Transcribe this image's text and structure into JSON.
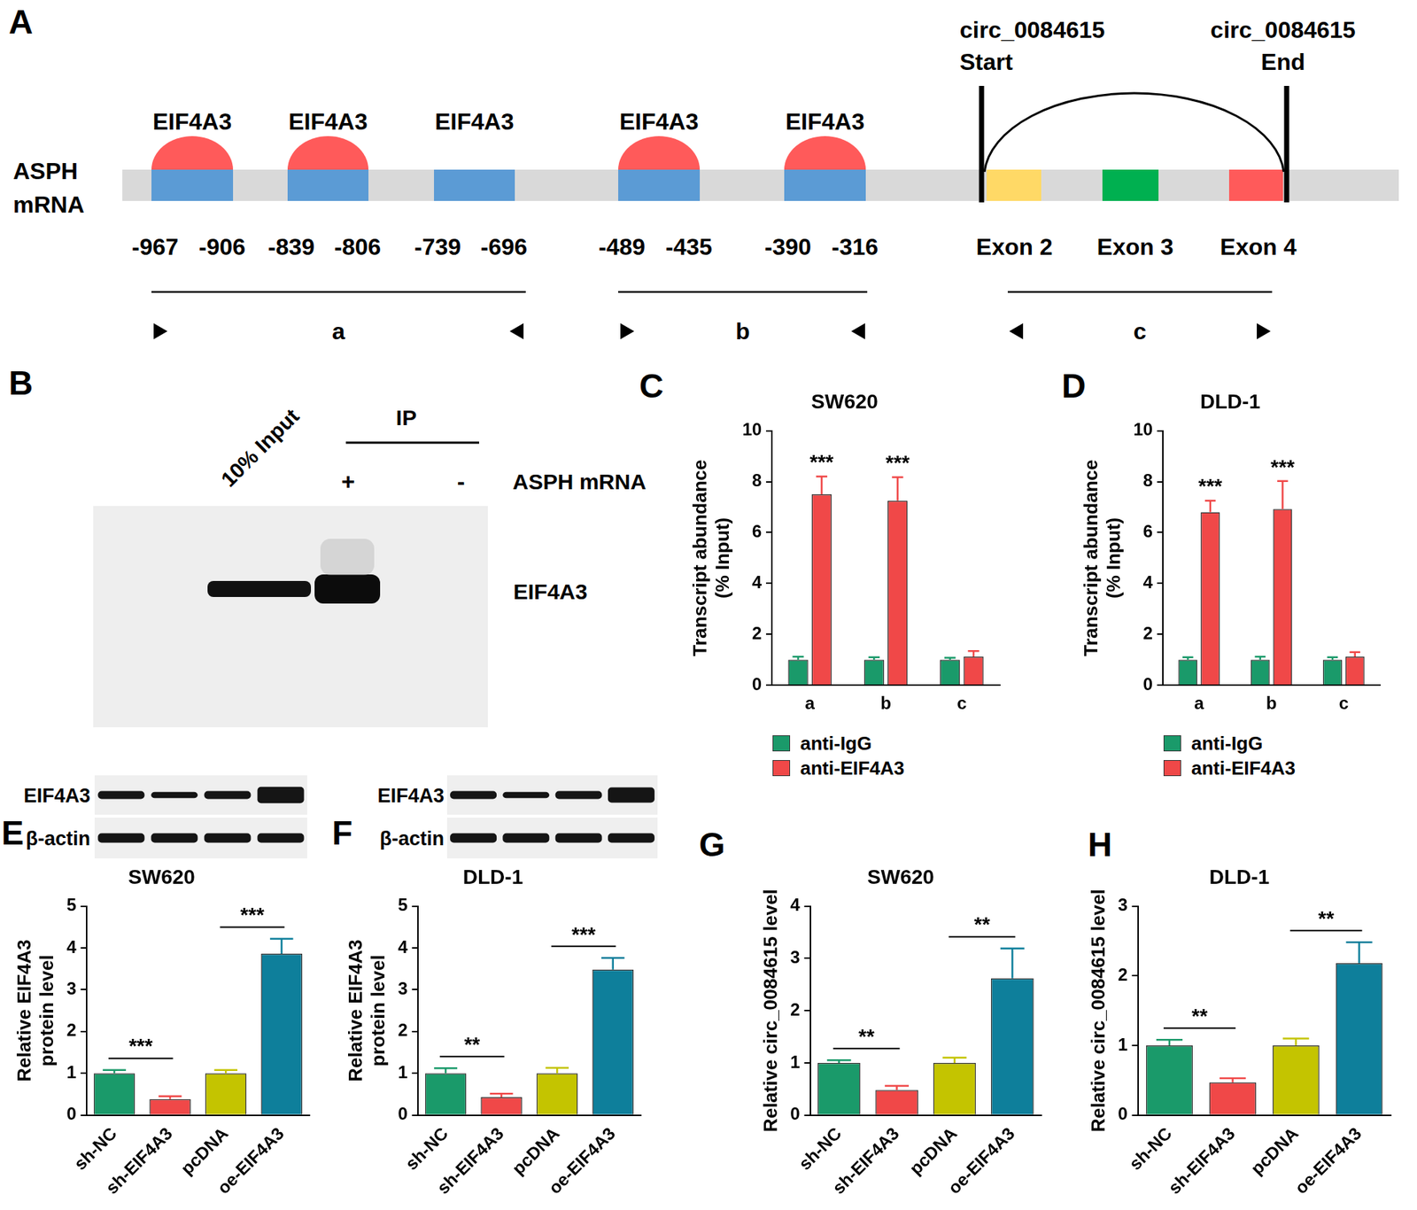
{
  "diagram": {
    "panel": "A",
    "mrna_label": [
      "ASPH",
      "mRNA"
    ],
    "sites": [
      {
        "label": "EIF4A3",
        "start": -967,
        "end": -906,
        "bound": true
      },
      {
        "label": "EIF4A3",
        "start": -839,
        "end": -806,
        "bound": true
      },
      {
        "label": "EIF4A3",
        "start": -739,
        "end": -696,
        "bound": false
      },
      {
        "label": "EIF4A3",
        "start": -489,
        "end": -435,
        "bound": true
      },
      {
        "label": "EIF4A3",
        "start": -390,
        "end": -316,
        "bound": true
      }
    ],
    "circ_start": [
      "circ_0084615",
      "Start"
    ],
    "circ_end": [
      "circ_0084615",
      "End"
    ],
    "exons": [
      {
        "label": "Exon 2",
        "color": "#ffd966"
      },
      {
        "label": "Exon 3",
        "color": "#00b050"
      },
      {
        "label": "Exon 4",
        "color": "#ff5a5a"
      }
    ],
    "regions": [
      "a",
      "b",
      "c"
    ]
  },
  "blot_ip": {
    "panel": "B",
    "input_label": "10% Input",
    "ip_label": "IP",
    "ip_lanes": [
      "+",
      "-"
    ],
    "row_label": "ASPH mRNA",
    "band_label": "EIF4A3"
  },
  "blots": [
    {
      "panel": "E",
      "rows": [
        "EIF4A3",
        "β-actin"
      ]
    },
    {
      "panel": "F",
      "rows": [
        "EIF4A3",
        "β-actin"
      ]
    }
  ],
  "chart_data": [
    {
      "panel": "C",
      "type": "bar",
      "title": "SW620",
      "categories": [
        "a",
        "b",
        "c"
      ],
      "series": [
        {
          "name": "anti-IgG",
          "color": "#1a9a6a",
          "values": [
            1,
            1,
            1
          ],
          "error": [
            0.12,
            0.1,
            0.08
          ]
        },
        {
          "name": "anti-EIF4A3",
          "color": "#f04848",
          "values": [
            7.5,
            7.25,
            1.12
          ],
          "error": [
            0.7,
            0.92,
            0.22
          ]
        }
      ],
      "y_label": [
        "Transcript abundance",
        "(% Input)"
      ],
      "ylim": [
        0,
        10
      ],
      "yticks": [
        0,
        2,
        4,
        6,
        8,
        10
      ],
      "grid": false,
      "legend": "bottom",
      "annotations": [
        {
          "category": "a",
          "series": "anti-EIF4A3",
          "text": "***"
        },
        {
          "category": "b",
          "series": "anti-EIF4A3",
          "text": "***"
        }
      ]
    },
    {
      "panel": "D",
      "type": "bar",
      "title": "DLD-1",
      "categories": [
        "a",
        "b",
        "c"
      ],
      "series": [
        {
          "name": "anti-IgG",
          "color": "#1a9a6a",
          "values": [
            1,
            1,
            1
          ],
          "error": [
            0.1,
            0.12,
            0.1
          ]
        },
        {
          "name": "anti-EIF4A3",
          "color": "#f04848",
          "values": [
            6.8,
            6.92,
            1.12
          ],
          "error": [
            0.45,
            1.1,
            0.18
          ]
        }
      ],
      "y_label": [
        "Transcript abundance",
        "(% Input)"
      ],
      "ylim": [
        0,
        10
      ],
      "yticks": [
        0,
        2,
        4,
        6,
        8,
        10
      ],
      "grid": false,
      "legend": "bottom",
      "annotations": [
        {
          "category": "a",
          "series": "anti-EIF4A3",
          "text": "***"
        },
        {
          "category": "b",
          "series": "anti-EIF4A3",
          "text": "***"
        }
      ]
    },
    {
      "panel": "E",
      "type": "bar",
      "title": "SW620",
      "categories": [
        "sh-NC",
        "sh-EIF4A3",
        "pcDNA",
        "oe-EIF4A3"
      ],
      "values": [
        1,
        0.38,
        1,
        3.86
      ],
      "error": [
        0.08,
        0.07,
        0.08,
        0.36
      ],
      "colors": [
        "#1a9a6a",
        "#f04848",
        "#c4c400",
        "#0e7f9b"
      ],
      "y_label": [
        "Relative EIF4A3",
        "protein level"
      ],
      "ylim": [
        0,
        5
      ],
      "yticks": [
        0,
        1,
        2,
        3,
        4,
        5
      ],
      "grid": false,
      "annotations": [
        {
          "from": "sh-NC",
          "to": "sh-EIF4A3",
          "text": "***"
        },
        {
          "from": "pcDNA",
          "to": "oe-EIF4A3",
          "text": "***"
        }
      ]
    },
    {
      "panel": "F",
      "type": "bar",
      "title": "DLD-1",
      "categories": [
        "sh-NC",
        "sh-EIF4A3",
        "pcDNA",
        "oe-EIF4A3"
      ],
      "values": [
        1,
        0.43,
        1,
        3.48
      ],
      "error": [
        0.12,
        0.08,
        0.13,
        0.28
      ],
      "colors": [
        "#1a9a6a",
        "#f04848",
        "#c4c400",
        "#0e7f9b"
      ],
      "y_label": [
        "Relative EIF4A3",
        "protein level"
      ],
      "ylim": [
        0,
        5
      ],
      "yticks": [
        0,
        1,
        2,
        3,
        4,
        5
      ],
      "grid": false,
      "annotations": [
        {
          "from": "sh-NC",
          "to": "sh-EIF4A3",
          "text": "**"
        },
        {
          "from": "pcDNA",
          "to": "oe-EIF4A3",
          "text": "***"
        }
      ]
    },
    {
      "panel": "G",
      "type": "bar",
      "title": "SW620",
      "categories": [
        "sh-NC",
        "sh-EIF4A3",
        "pcDNA",
        "oe-EIF4A3"
      ],
      "values": [
        1,
        0.48,
        1,
        2.62
      ],
      "error": [
        0.05,
        0.08,
        0.1,
        0.57
      ],
      "colors": [
        "#1a9a6a",
        "#f04848",
        "#c4c400",
        "#0e7f9b"
      ],
      "y_label": "Relative circ_0084615 level",
      "ylim": [
        0,
        4
      ],
      "yticks": [
        0,
        1,
        2,
        3,
        4
      ],
      "grid": false,
      "annotations": [
        {
          "from": "sh-NC",
          "to": "sh-EIF4A3",
          "text": "**"
        },
        {
          "from": "pcDNA",
          "to": "oe-EIF4A3",
          "text": "**"
        }
      ]
    },
    {
      "panel": "H",
      "type": "bar",
      "title": "DLD-1",
      "categories": [
        "sh-NC",
        "sh-EIF4A3",
        "pcDNA",
        "oe-EIF4A3"
      ],
      "values": [
        1,
        0.47,
        1,
        2.18
      ],
      "error": [
        0.08,
        0.06,
        0.1,
        0.3
      ],
      "colors": [
        "#1a9a6a",
        "#f04848",
        "#c4c400",
        "#0e7f9b"
      ],
      "y_label": "Relative circ_0084615 level",
      "ylim": [
        0,
        3
      ],
      "yticks": [
        0,
        1,
        2,
        3
      ],
      "grid": false,
      "annotations": [
        {
          "from": "sh-NC",
          "to": "sh-EIF4A3",
          "text": "**"
        },
        {
          "from": "pcDNA",
          "to": "oe-EIF4A3",
          "text": "**"
        }
      ]
    }
  ]
}
